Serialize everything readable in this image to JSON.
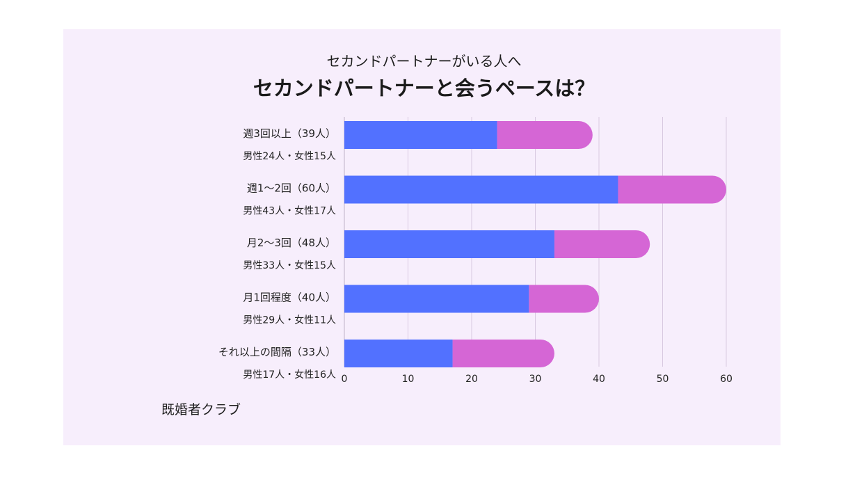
{
  "chart_data": {
    "type": "bar",
    "orientation": "horizontal",
    "stacked": true,
    "subtitle": "セカンドパートナーがいる人へ",
    "title": "セカンドパートナーと会うペースは？",
    "categories": [
      "週3回以上（39人）",
      "週1～2回（60人）",
      "月2～3回（48人）",
      "月1回程度（40人）",
      "それ以上の間隔（33人）"
    ],
    "category_sublabels": [
      "男性24人・女性15人",
      "男性43人・女性17人",
      "男性33人・女性15人",
      "男性29人・女性11人",
      "男性17人・女性16人"
    ],
    "series": [
      {
        "values": [
          24,
          43,
          33,
          29,
          17
        ],
        "color": "#5271ff"
      },
      {
        "values": [
          15,
          17,
          15,
          11,
          16
        ],
        "color": "#d566d5"
      }
    ],
    "xlim": [
      0,
      60
    ],
    "xticks": [
      0,
      10,
      20,
      30,
      40,
      50,
      60
    ],
    "grid": true
  },
  "source": "既婚者クラブ"
}
